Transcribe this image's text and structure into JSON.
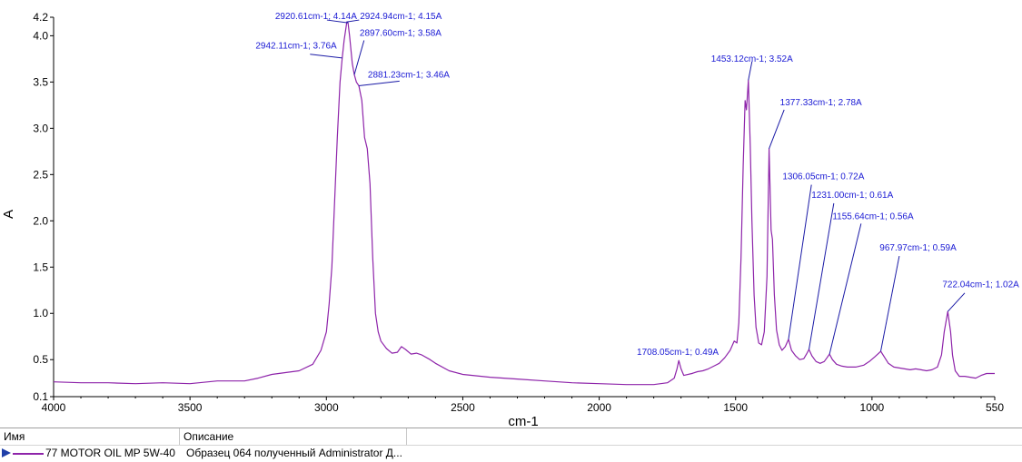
{
  "chart_data": {
    "type": "line",
    "title": "",
    "xlabel": "cm-1",
    "ylabel": "A",
    "xlim": [
      4000,
      550
    ],
    "x_reversed": true,
    "ylim": [
      0.1,
      4.2
    ],
    "x_ticks": [
      4000,
      3500,
      3000,
      2500,
      2000,
      1500,
      1000,
      550
    ],
    "y_ticks": [
      0.1,
      0.5,
      1.0,
      1.5,
      2.0,
      2.5,
      3.0,
      3.5,
      4.0,
      4.2
    ],
    "grid": false,
    "series": [
      {
        "name": "77 MOTOR OIL MP 5W-40",
        "color": "#8e24aa",
        "points": [
          [
            4000,
            0.26
          ],
          [
            3900,
            0.25
          ],
          [
            3800,
            0.25
          ],
          [
            3700,
            0.24
          ],
          [
            3600,
            0.25
          ],
          [
            3500,
            0.24
          ],
          [
            3400,
            0.27
          ],
          [
            3300,
            0.27
          ],
          [
            3250,
            0.3
          ],
          [
            3200,
            0.34
          ],
          [
            3150,
            0.36
          ],
          [
            3100,
            0.38
          ],
          [
            3050,
            0.45
          ],
          [
            3020,
            0.6
          ],
          [
            3000,
            0.8
          ],
          [
            2990,
            1.1
          ],
          [
            2980,
            1.5
          ],
          [
            2970,
            2.2
          ],
          [
            2960,
            2.9
          ],
          [
            2950,
            3.5
          ],
          [
            2942,
            3.76
          ],
          [
            2935,
            3.95
          ],
          [
            2924.94,
            4.15
          ],
          [
            2920.61,
            4.14
          ],
          [
            2915,
            4.0
          ],
          [
            2905,
            3.7
          ],
          [
            2897.6,
            3.58
          ],
          [
            2890,
            3.5
          ],
          [
            2881.23,
            3.46
          ],
          [
            2870,
            3.3
          ],
          [
            2860,
            2.9
          ],
          [
            2850,
            2.78
          ],
          [
            2840,
            2.4
          ],
          [
            2830,
            1.6
          ],
          [
            2820,
            1.0
          ],
          [
            2810,
            0.8
          ],
          [
            2800,
            0.7
          ],
          [
            2780,
            0.62
          ],
          [
            2760,
            0.57
          ],
          [
            2740,
            0.58
          ],
          [
            2725,
            0.64
          ],
          [
            2710,
            0.61
          ],
          [
            2690,
            0.56
          ],
          [
            2670,
            0.57
          ],
          [
            2650,
            0.55
          ],
          [
            2620,
            0.5
          ],
          [
            2600,
            0.46
          ],
          [
            2550,
            0.38
          ],
          [
            2500,
            0.34
          ],
          [
            2400,
            0.31
          ],
          [
            2300,
            0.29
          ],
          [
            2200,
            0.27
          ],
          [
            2100,
            0.25
          ],
          [
            2000,
            0.24
          ],
          [
            1900,
            0.23
          ],
          [
            1800,
            0.23
          ],
          [
            1750,
            0.25
          ],
          [
            1725,
            0.3
          ],
          [
            1715,
            0.4
          ],
          [
            1708.05,
            0.49
          ],
          [
            1700,
            0.4
          ],
          [
            1690,
            0.33
          ],
          [
            1660,
            0.35
          ],
          [
            1640,
            0.37
          ],
          [
            1620,
            0.38
          ],
          [
            1600,
            0.4
          ],
          [
            1580,
            0.43
          ],
          [
            1560,
            0.46
          ],
          [
            1540,
            0.52
          ],
          [
            1520,
            0.6
          ],
          [
            1505,
            0.7
          ],
          [
            1495,
            0.68
          ],
          [
            1488,
            0.9
          ],
          [
            1480,
            1.6
          ],
          [
            1472,
            2.6
          ],
          [
            1465,
            3.3
          ],
          [
            1460,
            3.2
          ],
          [
            1453.12,
            3.52
          ],
          [
            1446,
            2.8
          ],
          [
            1440,
            2.0
          ],
          [
            1432,
            1.2
          ],
          [
            1425,
            0.85
          ],
          [
            1415,
            0.68
          ],
          [
            1405,
            0.66
          ],
          [
            1395,
            0.8
          ],
          [
            1385,
            1.4
          ],
          [
            1377.33,
            2.78
          ],
          [
            1370,
            1.9
          ],
          [
            1365,
            1.8
          ],
          [
            1358,
            1.2
          ],
          [
            1350,
            0.82
          ],
          [
            1340,
            0.66
          ],
          [
            1330,
            0.6
          ],
          [
            1318,
            0.64
          ],
          [
            1306.05,
            0.72
          ],
          [
            1295,
            0.6
          ],
          [
            1280,
            0.54
          ],
          [
            1265,
            0.5
          ],
          [
            1250,
            0.51
          ],
          [
            1240,
            0.56
          ],
          [
            1231,
            0.61
          ],
          [
            1220,
            0.54
          ],
          [
            1205,
            0.48
          ],
          [
            1190,
            0.46
          ],
          [
            1175,
            0.48
          ],
          [
            1165,
            0.52
          ],
          [
            1155.64,
            0.56
          ],
          [
            1145,
            0.5
          ],
          [
            1130,
            0.45
          ],
          [
            1110,
            0.43
          ],
          [
            1090,
            0.42
          ],
          [
            1060,
            0.42
          ],
          [
            1030,
            0.44
          ],
          [
            1010,
            0.48
          ],
          [
            990,
            0.53
          ],
          [
            975,
            0.57
          ],
          [
            967.97,
            0.59
          ],
          [
            955,
            0.53
          ],
          [
            940,
            0.46
          ],
          [
            920,
            0.42
          ],
          [
            900,
            0.41
          ],
          [
            880,
            0.4
          ],
          [
            860,
            0.39
          ],
          [
            840,
            0.4
          ],
          [
            820,
            0.39
          ],
          [
            800,
            0.38
          ],
          [
            780,
            0.39
          ],
          [
            760,
            0.42
          ],
          [
            745,
            0.55
          ],
          [
            735,
            0.8
          ],
          [
            722.04,
            1.02
          ],
          [
            712,
            0.8
          ],
          [
            705,
            0.55
          ],
          [
            695,
            0.38
          ],
          [
            680,
            0.32
          ],
          [
            660,
            0.32
          ],
          [
            640,
            0.31
          ],
          [
            620,
            0.3
          ],
          [
            600,
            0.33
          ],
          [
            580,
            0.35
          ],
          [
            565,
            0.35
          ],
          [
            550,
            0.35
          ]
        ]
      }
    ],
    "annotations": [
      {
        "label": "2920.61cm-1; 4.14A",
        "x": 2920.61,
        "y": 4.14,
        "lx": 2998,
        "ly": 4.17,
        "text_x": 2888,
        "text_y": 4.18,
        "anchor": "end"
      },
      {
        "label": "2924.94cm-1; 4.15A",
        "x": 2924.94,
        "y": 4.15,
        "lx": 2880,
        "ly": 4.17,
        "text_x": 2877,
        "text_y": 4.18,
        "anchor": "start"
      },
      {
        "label": "2897.60cm-1; 3.58A",
        "x": 2897.6,
        "y": 3.58,
        "lx": 2862,
        "ly": 3.95,
        "text_x": 2878,
        "text_y": 4.0,
        "anchor": "start"
      },
      {
        "label": "2942.11cm-1; 3.76A",
        "x": 2942.11,
        "y": 3.76,
        "lx": 3060,
        "ly": 3.8,
        "text_x": 2962,
        "text_y": 3.86,
        "anchor": "end"
      },
      {
        "label": "2881.23cm-1; 3.46A",
        "x": 2881.23,
        "y": 3.46,
        "lx": 2732,
        "ly": 3.51,
        "text_x": 2848,
        "text_y": 3.55,
        "anchor": "start"
      },
      {
        "label": "1453.12cm-1; 3.52A",
        "x": 1453.12,
        "y": 3.52,
        "lx": 1440,
        "ly": 3.72,
        "text_x": 1440,
        "text_y": 3.72,
        "anchor": "middle"
      },
      {
        "label": "1377.33cm-1; 2.78A",
        "x": 1377.33,
        "y": 2.78,
        "lx": 1322,
        "ly": 3.2,
        "text_x": 1337,
        "text_y": 3.25,
        "anchor": "start"
      },
      {
        "label": "1306.05cm-1; 0.72A",
        "x": 1306.05,
        "y": 0.72,
        "lx": 1222,
        "ly": 2.39,
        "text_x": 1328,
        "text_y": 2.45,
        "anchor": "start"
      },
      {
        "label": "1231.00cm-1; 0.61A",
        "x": 1231,
        "y": 0.61,
        "lx": 1140,
        "ly": 2.19,
        "text_x": 1222,
        "text_y": 2.25,
        "anchor": "start"
      },
      {
        "label": "1155.64cm-1; 0.56A",
        "x": 1155.64,
        "y": 0.56,
        "lx": 1040,
        "ly": 1.97,
        "text_x": 1145,
        "text_y": 2.02,
        "anchor": "start"
      },
      {
        "label": "967.97cm-1; 0.59A",
        "x": 967.97,
        "y": 0.59,
        "lx": 900,
        "ly": 1.62,
        "text_x": 972,
        "text_y": 1.68,
        "anchor": "start"
      },
      {
        "label": "722.04cm-1; 1.02A",
        "x": 722.04,
        "y": 1.02,
        "lx": 660,
        "ly": 1.22,
        "text_x": 742,
        "text_y": 1.28,
        "anchor": "start"
      },
      {
        "label": "1708.05cm-1; 0.49A",
        "x": 1708.05,
        "y": 0.49,
        "lx": 1708.05,
        "ly": 0.49,
        "text_x": 1712,
        "text_y": 0.55,
        "anchor": "middle"
      }
    ]
  },
  "legend": {
    "header_name": "Имя",
    "header_desc": "Описание",
    "row_name": "77 MOTOR OIL MP 5W-40",
    "row_desc": "Образец 064 полученный Administrator Д..."
  }
}
